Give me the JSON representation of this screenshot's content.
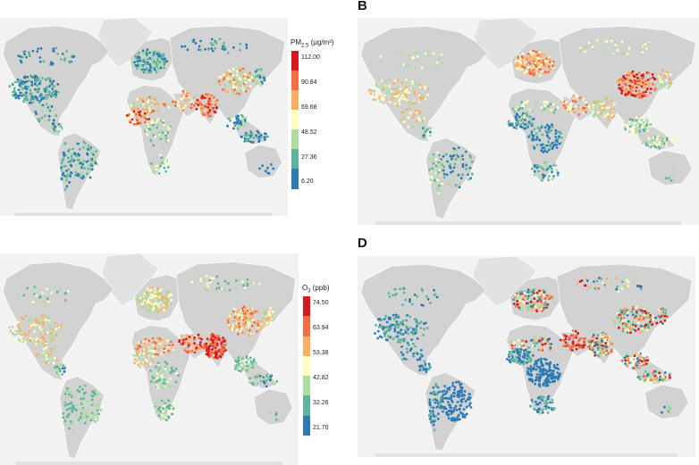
{
  "colors": {
    "ocean": "#f2f2f2",
    "land": "#d2d2d2",
    "ice": "#e2e2e2",
    "scale": [
      "#2c7bb6",
      "#5fb59b",
      "#abdda4",
      "#ffffbf",
      "#fdae61",
      "#f46d43",
      "#d7191c"
    ]
  },
  "panels": [
    {
      "id": "A",
      "letter": "",
      "legend": {
        "title_main": "PM",
        "title_sub": "2.5",
        "title_unit": " (μg/m³)",
        "ticks": [
          "112.00",
          "90.84",
          "69.68",
          "48.52",
          "27.36",
          "6.20"
        ]
      }
    },
    {
      "id": "B",
      "letter": "B"
    },
    {
      "id": "C",
      "letter": "",
      "legend": {
        "title_main": "O",
        "title_sub": "3",
        "title_unit": " (ppb)",
        "ticks": [
          "74.50",
          "63.94",
          "53.38",
          "42.82",
          "32.26",
          "21.70"
        ]
      }
    },
    {
      "id": "D",
      "letter": "D"
    }
  ]
}
